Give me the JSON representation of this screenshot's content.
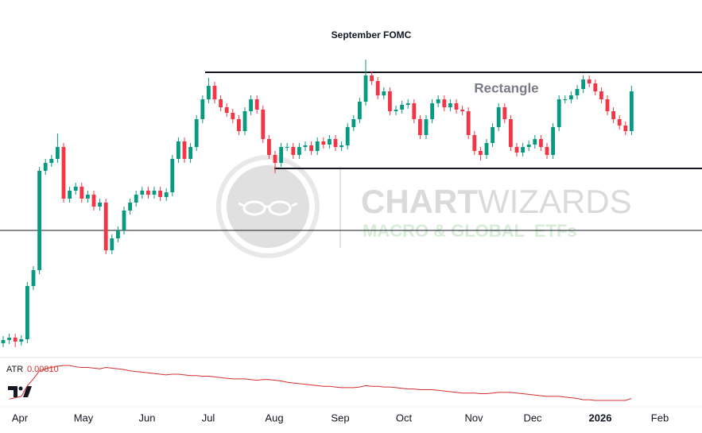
{
  "chart_data": {
    "type": "candlestick",
    "up_color": "#089981",
    "down_color": "#f23645",
    "candles": [
      [
        68,
        77,
        63,
        72
      ],
      [
        72,
        80,
        67,
        75
      ],
      [
        75,
        80,
        63,
        70
      ],
      [
        70,
        78,
        65,
        73
      ],
      [
        73,
        145,
        68,
        140
      ],
      [
        140,
        165,
        135,
        160
      ],
      [
        160,
        290,
        155,
        285
      ],
      [
        285,
        300,
        280,
        295
      ],
      [
        295,
        305,
        290,
        300
      ],
      [
        300,
        332,
        295,
        315
      ],
      [
        315,
        320,
        245,
        250
      ],
      [
        250,
        265,
        245,
        260
      ],
      [
        260,
        270,
        255,
        265
      ],
      [
        265,
        270,
        245,
        250
      ],
      [
        250,
        260,
        245,
        255
      ],
      [
        255,
        260,
        235,
        240
      ],
      [
        240,
        250,
        235,
        245
      ],
      [
        245,
        250,
        180,
        185
      ],
      [
        185,
        205,
        180,
        200
      ],
      [
        200,
        215,
        195,
        210
      ],
      [
        210,
        240,
        205,
        235
      ],
      [
        235,
        250,
        230,
        245
      ],
      [
        245,
        260,
        240,
        255
      ],
      [
        255,
        265,
        250,
        260
      ],
      [
        260,
        265,
        250,
        255
      ],
      [
        255,
        265,
        250,
        260
      ],
      [
        260,
        265,
        247,
        252
      ],
      [
        252,
        263,
        247,
        258
      ],
      [
        258,
        305,
        253,
        300
      ],
      [
        300,
        327,
        295,
        322
      ],
      [
        322,
        327,
        295,
        300
      ],
      [
        300,
        320,
        295,
        315
      ],
      [
        315,
        355,
        310,
        350
      ],
      [
        350,
        380,
        345,
        375
      ],
      [
        375,
        402,
        370,
        392
      ],
      [
        392,
        397,
        370,
        375
      ],
      [
        375,
        380,
        360,
        365
      ],
      [
        365,
        370,
        353,
        358
      ],
      [
        358,
        363,
        345,
        350
      ],
      [
        350,
        355,
        330,
        335
      ],
      [
        335,
        365,
        330,
        360
      ],
      [
        360,
        380,
        355,
        375
      ],
      [
        375,
        380,
        357,
        362
      ],
      [
        362,
        367,
        320,
        325
      ],
      [
        325,
        330,
        300,
        305
      ],
      [
        305,
        310,
        282,
        295
      ],
      [
        295,
        320,
        290,
        315
      ],
      [
        315,
        320,
        310,
        315
      ],
      [
        315,
        320,
        300,
        305
      ],
      [
        305,
        320,
        300,
        315
      ],
      [
        315,
        322,
        310,
        317
      ],
      [
        317,
        322,
        305,
        310
      ],
      [
        310,
        327,
        305,
        322
      ],
      [
        322,
        327,
        313,
        318
      ],
      [
        318,
        330,
        313,
        325
      ],
      [
        325,
        330,
        310,
        315
      ],
      [
        315,
        322,
        310,
        317
      ],
      [
        317,
        345,
        312,
        340
      ],
      [
        340,
        355,
        335,
        350
      ],
      [
        350,
        377,
        345,
        372
      ],
      [
        372,
        425,
        367,
        405
      ],
      [
        405,
        410,
        393,
        398
      ],
      [
        398,
        403,
        375,
        380
      ],
      [
        380,
        390,
        375,
        385
      ],
      [
        385,
        390,
        355,
        360
      ],
      [
        360,
        367,
        355,
        362
      ],
      [
        362,
        373,
        357,
        368
      ],
      [
        368,
        375,
        363,
        370
      ],
      [
        370,
        375,
        345,
        350
      ],
      [
        350,
        355,
        325,
        330
      ],
      [
        330,
        355,
        325,
        350
      ],
      [
        350,
        375,
        345,
        370
      ],
      [
        370,
        380,
        365,
        375
      ],
      [
        375,
        380,
        360,
        365
      ],
      [
        365,
        375,
        360,
        370
      ],
      [
        370,
        375,
        357,
        362
      ],
      [
        362,
        367,
        355,
        360
      ],
      [
        360,
        365,
        325,
        330
      ],
      [
        330,
        335,
        305,
        310
      ],
      [
        310,
        315,
        298,
        305
      ],
      [
        305,
        325,
        300,
        320
      ],
      [
        320,
        345,
        315,
        340
      ],
      [
        340,
        370,
        335,
        365
      ],
      [
        365,
        370,
        345,
        350
      ],
      [
        350,
        355,
        310,
        315
      ],
      [
        315,
        320,
        303,
        308
      ],
      [
        308,
        320,
        303,
        315
      ],
      [
        315,
        323,
        310,
        318
      ],
      [
        318,
        330,
        313,
        325
      ],
      [
        325,
        330,
        310,
        315
      ],
      [
        315,
        320,
        300,
        305
      ],
      [
        305,
        345,
        300,
        340
      ],
      [
        340,
        380,
        335,
        375
      ],
      [
        375,
        380,
        370,
        375
      ],
      [
        375,
        385,
        370,
        380
      ],
      [
        380,
        393,
        375,
        388
      ],
      [
        388,
        405,
        383,
        400
      ],
      [
        400,
        405,
        390,
        395
      ],
      [
        395,
        400,
        380,
        385
      ],
      [
        385,
        390,
        370,
        375
      ],
      [
        375,
        380,
        355,
        360
      ],
      [
        360,
        365,
        345,
        350
      ],
      [
        350,
        355,
        337,
        342
      ],
      [
        342,
        347,
        330,
        335
      ],
      [
        335,
        392,
        330,
        385
      ]
    ],
    "levels": [
      409,
      288,
      210
    ],
    "level_color": "#131722",
    "x_labels": [
      "Apr",
      "May",
      "Jun",
      "Jul",
      "Aug",
      "Sep",
      "Oct",
      "Nov",
      "Dec",
      "2026",
      "Feb"
    ],
    "annotations": [
      "September FOMC",
      "Rectangle"
    ],
    "indicator": {
      "name": "ATR",
      "color": "#d32f2f",
      "current": {
        "value": 0.0081,
        "label": "0.00810"
      },
      "values": [
        null,
        0.008,
        0.0082,
        0.0084,
        0.01,
        0.011,
        0.0122,
        0.0125,
        0.0127,
        0.0129,
        0.013,
        0.013,
        0.0128,
        0.0127,
        0.0127,
        0.0126,
        0.0125,
        0.0127,
        0.0126,
        0.0125,
        0.0124,
        0.0122,
        0.0121,
        0.012,
        0.0119,
        0.0118,
        0.0117,
        0.0116,
        0.0117,
        0.0117,
        0.0116,
        0.0115,
        0.0115,
        0.0114,
        0.0114,
        0.0113,
        0.0112,
        0.0111,
        0.011,
        0.011,
        0.011,
        0.0109,
        0.0108,
        0.0109,
        0.0109,
        0.0108,
        0.0107,
        0.0105,
        0.0104,
        0.0103,
        0.0102,
        0.0101,
        0.01,
        0.0099,
        0.0099,
        0.0098,
        0.0097,
        0.0097,
        0.0097,
        0.0098,
        0.01,
        0.0099,
        0.0099,
        0.0098,
        0.0098,
        0.0097,
        0.0096,
        0.0095,
        0.0095,
        0.0094,
        0.0094,
        0.0094,
        0.0093,
        0.0092,
        0.0091,
        0.009,
        0.0089,
        0.0089,
        0.0089,
        0.0088,
        0.0088,
        0.0089,
        0.009,
        0.009,
        0.009,
        0.0089,
        0.0088,
        0.0087,
        0.0086,
        0.0085,
        0.0084,
        0.0084,
        0.0084,
        0.0083,
        0.0082,
        0.0081,
        0.0079,
        0.0079,
        0.0078,
        0.0078,
        0.0078,
        0.0078,
        0.0078,
        0.0078,
        0.0081
      ]
    },
    "watermark": {
      "bold": "CHART",
      "light": "WIZARDS",
      "tagline": "MACRO & GLOBAL  ETFs"
    }
  }
}
